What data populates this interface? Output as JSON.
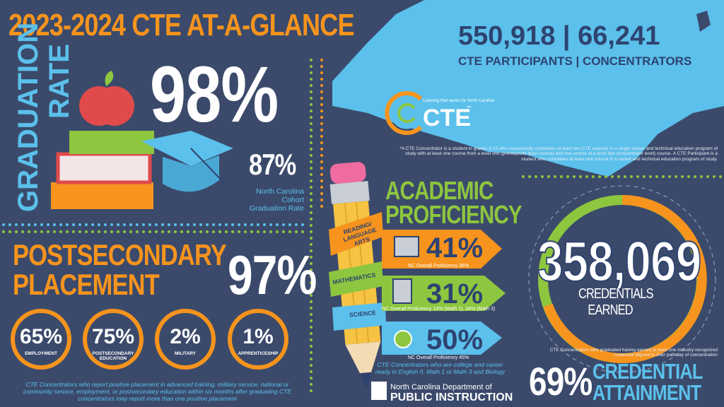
{
  "title": "2023-2024 CTE AT-A-GLANCE",
  "participants": {
    "numbers": "550,918 | 66,241",
    "label": "CTE PARTICIPANTS | CONCENTRATORS"
  },
  "logo": {
    "tagline": "Learning that works for North Carolina",
    "text": "CTE",
    "tm": "™"
  },
  "footnote": "*A CTE Concentrator is a student in grades 9-13 who successfully completes at least two CTE courses in a single career and technical education program of study with at least one course from a level one (prerequisite level course) and one course at a level two (concentrator level) course. A CTE Participant is a student who completes at least one course in a career and technical education program of study.",
  "graduation": {
    "label_1": "GRADUATION",
    "label_2": "RATE",
    "value": "98%",
    "state_value": "87%",
    "state_label": "North Carolina Cohort Graduation Rate"
  },
  "postsecondary": {
    "label_1": "POSTSECONDARY",
    "label_2": "PLACEMENT",
    "value": "97%",
    "items": [
      {
        "value": "65%",
        "label": "EMPLOYMENT"
      },
      {
        "value": "75%",
        "label": "POSTSECONDARY EDUCATION"
      },
      {
        "value": "2%",
        "label": "MILITARY"
      },
      {
        "value": "1%",
        "label": "APPRENTICESHIP"
      }
    ],
    "note": "CTE Concentrators who report positive placement in advanced training, military service, national or community service, employment, or postsecondary education within six months after graduating CTE concentrators may report more than one positive placement"
  },
  "academic": {
    "title_1": "ACADEMIC",
    "title_2": "PROFICIENCY",
    "subjects": [
      {
        "name": "READING/ LANGUAGE ARTS",
        "value": "41%",
        "note": "NC Overall Proficiency 36%"
      },
      {
        "name": "MATHEMATICS",
        "value": "31%",
        "note": "NC Overall Proficiency 13% (Math 1), 34% (Math 3)"
      },
      {
        "name": "SCIENCE",
        "value": "50%",
        "note": "NC Overall Proficiency 45%"
      }
    ],
    "note": "CTE Concentrators who are college and career ready in English II, Math 1 or Math 3 and Biology"
  },
  "credentials": {
    "value": "358,069",
    "label": "CREDENTIALS EARNED",
    "note": "CTE Concentrators who graduated having earned at least one industry-recognized credential aligned to their pathway of concentration",
    "percent": "69%",
    "percent_label_1": "CREDENTIAL",
    "percent_label_2": "ATTAINMENT"
  },
  "dpi": {
    "line_1": "North Carolina Department of",
    "line_2": "PUBLIC INSTRUCTION"
  }
}
